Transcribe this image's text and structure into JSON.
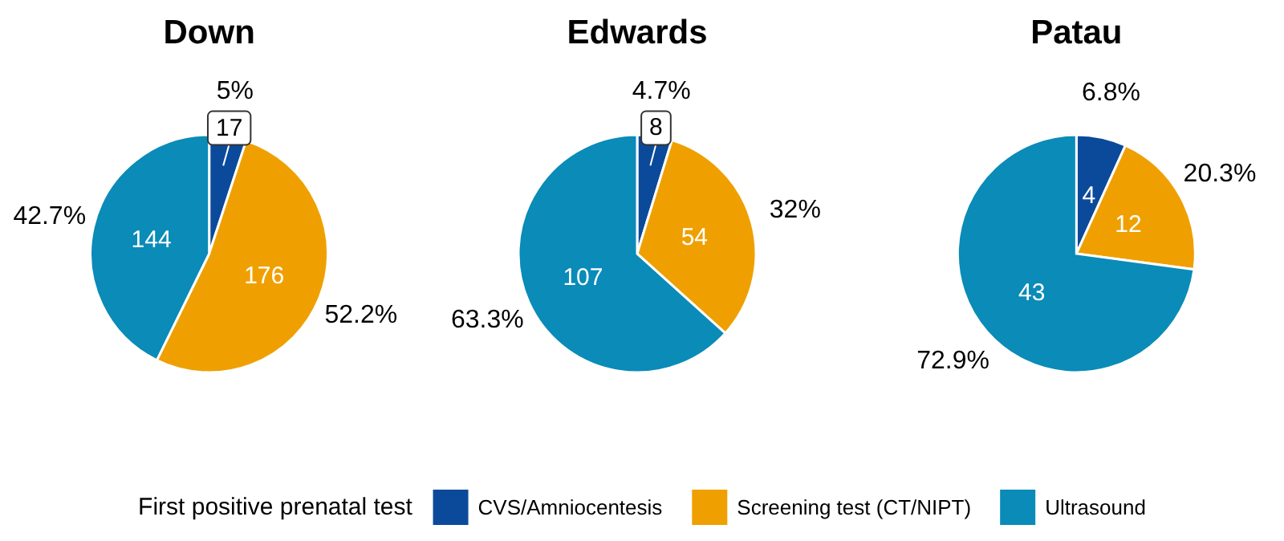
{
  "chart_data": [
    {
      "type": "pie",
      "title": "Down",
      "categories": [
        "CVS/Amniocentesis",
        "Screening test (CT/NIPT)",
        "Ultrasound"
      ],
      "values": [
        17,
        176,
        144
      ],
      "colors": [
        "#0b4a9b",
        "#efa000",
        "#0a8bb8"
      ],
      "data_labels": true,
      "annotations": [
        "5%",
        "52.2%",
        "42.7%"
      ],
      "legend": "bottom",
      "legend_title": "First positive prenatal test"
    },
    {
      "type": "pie",
      "title": "Edwards",
      "categories": [
        null,
        null,
        null
      ],
      "values": [
        8,
        54,
        107
      ],
      "colors": [
        "#0b4a9b",
        "#efa000",
        "#0a8bb8"
      ],
      "data_labels": true,
      "annotations": [
        "4.7%",
        "32%",
        "63.3%"
      ]
    },
    {
      "type": "pie",
      "title": "Patau",
      "categories": [
        null,
        null,
        null
      ],
      "values": [
        4,
        12,
        43
      ],
      "colors": [
        "#0b4a9b",
        "#efa000",
        "#0a8bb8"
      ],
      "data_labels": true,
      "annotations": [
        "6.8%",
        "20.3%",
        "72.9%"
      ]
    }
  ]
}
